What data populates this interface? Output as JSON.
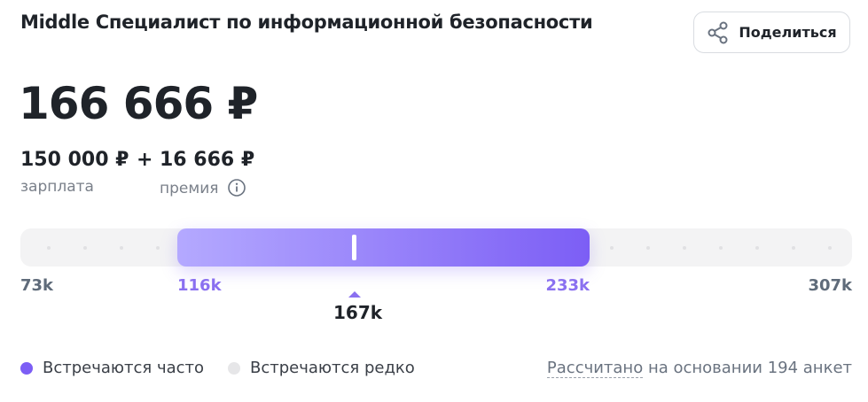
{
  "title": "Middle Специалист по информационной безопасности",
  "share_button": "Поделиться",
  "total": "166 666 ₽",
  "breakdown": {
    "salary": {
      "amount": "150 000 ₽",
      "label": "зарплата"
    },
    "plus": "+",
    "bonus": {
      "amount": "16 666 ₽",
      "label": "премия"
    }
  },
  "range": {
    "min": "73k",
    "low": "116k",
    "high": "233k",
    "max": "307k",
    "median": "167k"
  },
  "legend": [
    "Встречаются часто",
    "Встречаются редко"
  ],
  "footnote": {
    "link": "Рассчитано",
    "text": "на основании 194 анкет"
  }
}
